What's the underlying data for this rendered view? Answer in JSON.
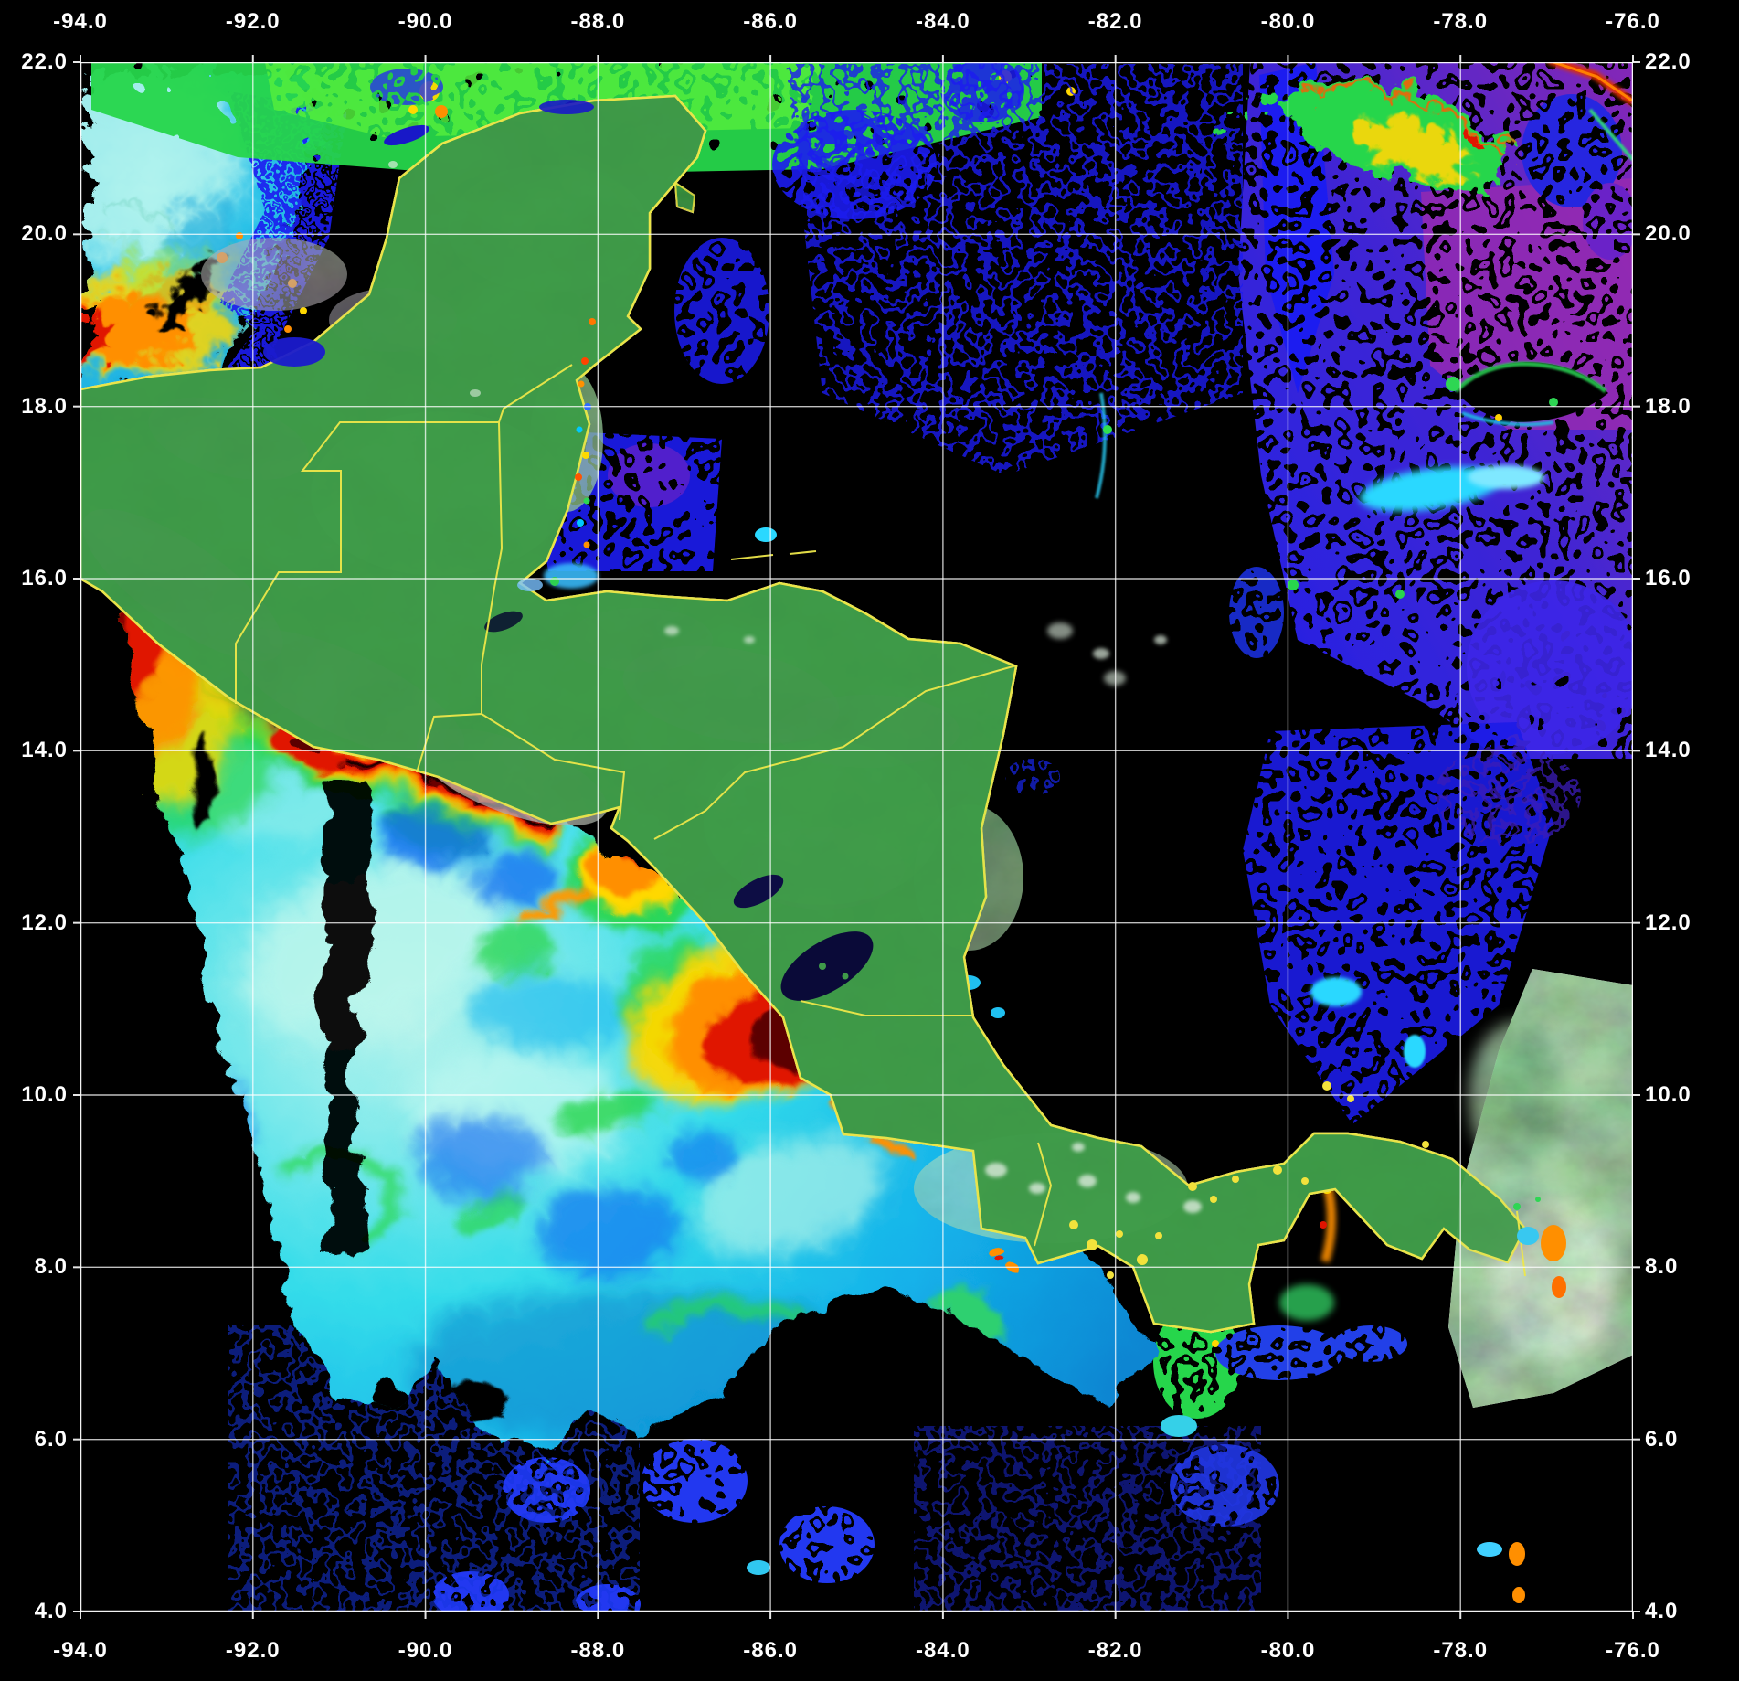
{
  "axes": {
    "lon_ticks": [
      "-94.0",
      "-92.0",
      "-90.0",
      "-88.0",
      "-86.0",
      "-84.0",
      "-82.0",
      "-80.0",
      "-78.0",
      "-76.0"
    ],
    "lat_ticks": [
      "22.0",
      "20.0",
      "18.0",
      "16.0",
      "14.0",
      "12.0",
      "10.0",
      "8.0",
      "6.0",
      "4.0"
    ]
  },
  "map": {
    "palette": {
      "background": "#000000",
      "grid_line": "#ffffff",
      "tick_text": "#ffffff",
      "coastline_yellow": "#ede74a",
      "land_green": "#3f9b49",
      "land_lowland_green": "#53c45b",
      "land_highland_mauve": "#8d7f92",
      "pale_land_gray_green": "#a9cfae",
      "ocean_cyan": "#2cd8e8",
      "ocean_pale_cyan": "#bdf6ec",
      "bloom_green": "#28d64c",
      "bloom_yellow": "#ffd800",
      "bloom_orange": "#ff8f00",
      "bloom_red": "#e01400",
      "bloom_dark_red": "#5c0000",
      "caribbean_royal_blue": "#1d1df0",
      "caribbean_indigo": "#3c28e8",
      "caribbean_purple": "#6a22c8",
      "caribbean_magenta": "#9a2bb0",
      "caribbean_cyan": "#2ad8ff",
      "lake_dark_navy": "#0a0a38",
      "lagoon_blue": "#1a1ace",
      "cloud_white": "#dcebdc"
    }
  }
}
